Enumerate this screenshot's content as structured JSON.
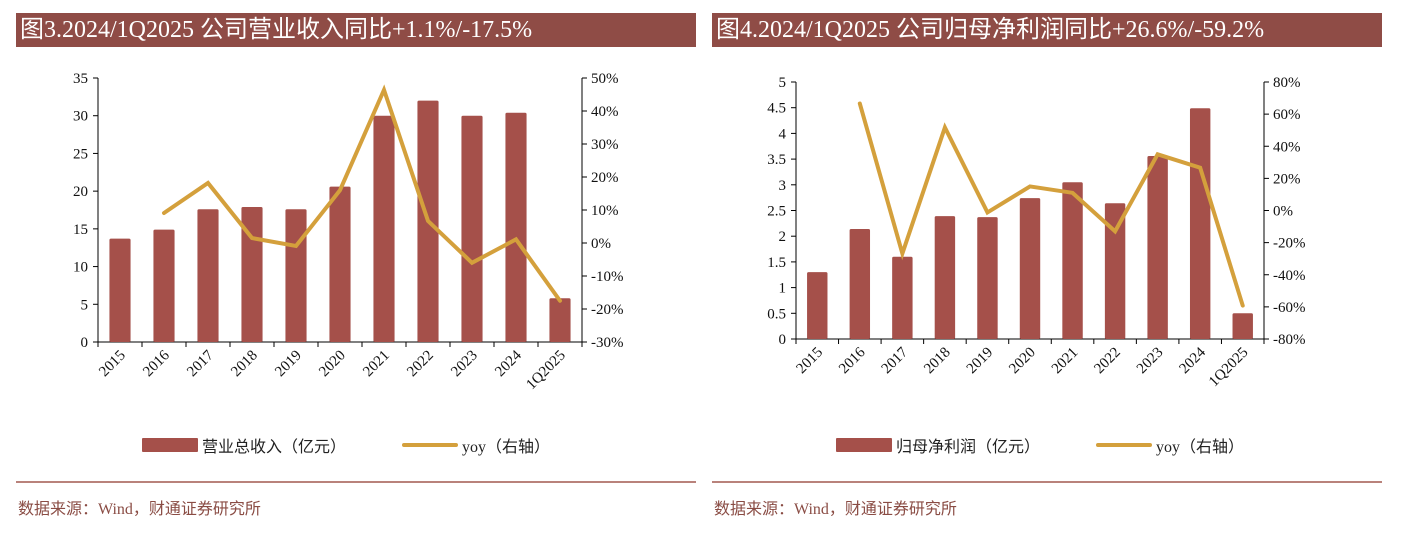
{
  "colors": {
    "bar": "#a5504a",
    "line": "#d4a03c",
    "title_bg": "#8f4c46",
    "source_text": "#8a4c44",
    "divider": "#b9827b"
  },
  "chart_data": [
    {
      "type": "bar",
      "title": "图3.2024/1Q2025 公司营业收入同比+1.1%/-17.5%",
      "categories": [
        "2015",
        "2016",
        "2017",
        "2018",
        "2019",
        "2020",
        "2021",
        "2022",
        "2023",
        "2024",
        "1Q2025"
      ],
      "series": [
        {
          "name": "营业总收入（亿元）",
          "type": "bar",
          "axis": "left",
          "values": [
            13.7,
            14.9,
            17.6,
            17.9,
            17.6,
            20.6,
            30.0,
            32.0,
            30.0,
            30.4,
            5.8
          ]
        },
        {
          "name": "yoy（右轴）",
          "type": "line",
          "axis": "right",
          "values": [
            null,
            9.1,
            18.2,
            1.5,
            -0.9,
            16.0,
            46.4,
            6.7,
            -6.0,
            1.1,
            -17.5
          ]
        }
      ],
      "ylim": [
        0,
        35
      ],
      "yticks": [
        "0",
        "5",
        "10",
        "15",
        "20",
        "25",
        "30",
        "35"
      ],
      "y2lim": [
        -30,
        50
      ],
      "y2ticks": [
        "-30%",
        "-20%",
        "-10%",
        "0%",
        "10%",
        "20%",
        "30%",
        "40%",
        "50%"
      ],
      "grid": false,
      "legend_position": "bottom",
      "xlabel": "",
      "ylabel": "",
      "y2label": "",
      "source": "数据来源：Wind，财通证券研究所"
    },
    {
      "type": "bar",
      "title": "图4.2024/1Q2025 公司归母净利润同比+26.6%/-59.2%",
      "categories": [
        "2015",
        "2016",
        "2017",
        "2018",
        "2019",
        "2020",
        "2021",
        "2022",
        "2023",
        "2024",
        "1Q2025"
      ],
      "series": [
        {
          "name": "归母净利润（亿元）",
          "type": "bar",
          "axis": "left",
          "values": [
            1.3,
            2.14,
            1.6,
            2.39,
            2.37,
            2.74,
            3.05,
            2.64,
            3.56,
            4.49,
            0.5
          ]
        },
        {
          "name": "yoy（右轴）",
          "type": "line",
          "axis": "right",
          "values": [
            null,
            66.6,
            -26.8,
            51.7,
            -1.2,
            15.0,
            11.0,
            -13.0,
            35.0,
            26.6,
            -59.2
          ]
        }
      ],
      "ylim": [
        0,
        5
      ],
      "yticks": [
        "0",
        "0.5",
        "1",
        "1.5",
        "2",
        "2.5",
        "3",
        "3.5",
        "4",
        "4.5",
        "5"
      ],
      "y2lim": [
        -80,
        80
      ],
      "y2ticks": [
        "-80%",
        "-60%",
        "-40%",
        "-20%",
        "0%",
        "20%",
        "40%",
        "60%",
        "80%"
      ],
      "grid": false,
      "legend_position": "bottom",
      "xlabel": "",
      "ylabel": "",
      "y2label": "",
      "source": "数据来源：Wind，财通证券研究所"
    }
  ]
}
